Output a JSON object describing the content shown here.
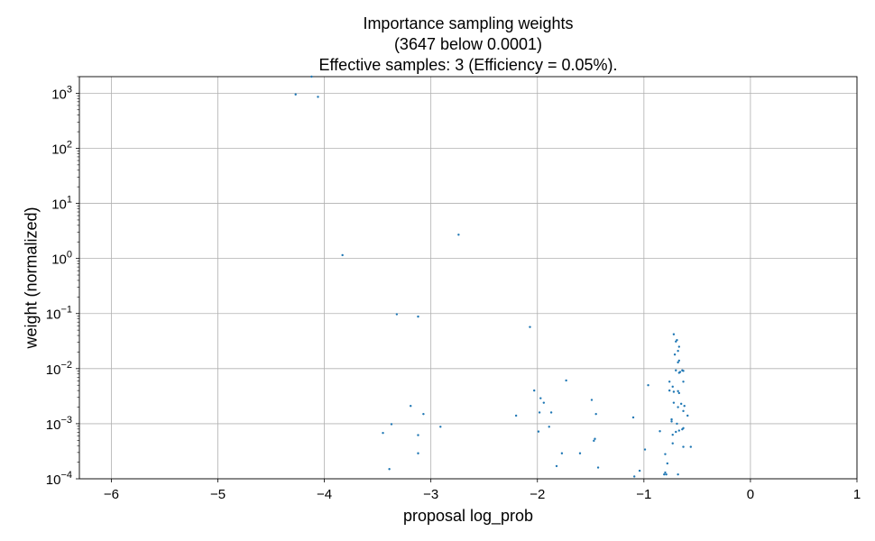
{
  "chart_data": {
    "type": "scatter",
    "title_lines": [
      "Importance sampling weights",
      "(3647 below 0.0001)",
      "Effective samples: 3 (Efficiency = 0.05%)."
    ],
    "xlabel": "proposal log_prob",
    "ylabel": "weight (normalized)",
    "xlim": [
      -6.3,
      1
    ],
    "ylim": [
      0.0001,
      2000
    ],
    "yscale": "log",
    "grid": true,
    "marker_color": "#1f77b4",
    "x_ticks": [
      {
        "v": -6,
        "label": "−6"
      },
      {
        "v": -5,
        "label": "−5"
      },
      {
        "v": -4,
        "label": "−4"
      },
      {
        "v": -3,
        "label": "−3"
      },
      {
        "v": -2,
        "label": "−2"
      },
      {
        "v": -1,
        "label": "−1"
      },
      {
        "v": 0,
        "label": "0"
      },
      {
        "v": 1,
        "label": "1"
      }
    ],
    "y_ticks": [
      {
        "exp": 3,
        "base": "10",
        "sup": "3"
      },
      {
        "exp": 2,
        "base": "10",
        "sup": "2"
      },
      {
        "exp": 1,
        "base": "10",
        "sup": "1"
      },
      {
        "exp": 0,
        "base": "10",
        "sup": "0"
      },
      {
        "exp": -1,
        "base": "10",
        "sup": "−1"
      },
      {
        "exp": -2,
        "base": "10",
        "sup": "−2"
      },
      {
        "exp": -3,
        "base": "10",
        "sup": "−3"
      },
      {
        "exp": -4,
        "base": "10",
        "sup": "−4"
      }
    ],
    "points": [
      [
        -4.27,
        950
      ],
      [
        -4.12,
        2000
      ],
      [
        -4.06,
        860
      ],
      [
        -3.83,
        1.15
      ],
      [
        -2.74,
        2.7
      ],
      [
        -3.32,
        0.097
      ],
      [
        -3.12,
        0.088
      ],
      [
        -2.07,
        0.057
      ],
      [
        -3.19,
        0.0021
      ],
      [
        -3.07,
        0.0015
      ],
      [
        -3.37,
        0.00098
      ],
      [
        -3.45,
        0.00068
      ],
      [
        -3.12,
        0.00062
      ],
      [
        -2.91,
        0.00088
      ],
      [
        -3.12,
        0.00029
      ],
      [
        -3.39,
        0.00015
      ],
      [
        -2.2,
        0.0014
      ],
      [
        -2.03,
        0.004
      ],
      [
        -1.97,
        0.0029
      ],
      [
        -1.94,
        0.0024
      ],
      [
        -1.98,
        0.0016
      ],
      [
        -1.87,
        0.0016
      ],
      [
        -1.89,
        0.00088
      ],
      [
        -1.99,
        0.00072
      ],
      [
        -1.73,
        0.0061
      ],
      [
        -1.77,
        0.00029
      ],
      [
        -1.82,
        0.00017
      ],
      [
        -1.6,
        0.00029
      ],
      [
        -1.49,
        0.0027
      ],
      [
        -1.45,
        0.0015
      ],
      [
        -1.46,
        0.00053
      ],
      [
        -1.47,
        0.00049
      ],
      [
        -1.43,
        0.00016
      ],
      [
        -1.1,
        0.0013
      ],
      [
        -1.09,
        0.00011
      ],
      [
        -1.04,
        0.00014
      ],
      [
        -0.96,
        0.005
      ],
      [
        -0.85,
        0.00073
      ],
      [
        -0.99,
        0.00034
      ],
      [
        -0.72,
        0.042
      ],
      [
        -0.69,
        0.033
      ],
      [
        -0.7,
        0.031
      ],
      [
        -0.67,
        0.025
      ],
      [
        -0.68,
        0.021
      ],
      [
        -0.71,
        0.018
      ],
      [
        -0.67,
        0.014
      ],
      [
        -0.68,
        0.013
      ],
      [
        -0.7,
        0.0093
      ],
      [
        -0.64,
        0.0093
      ],
      [
        -0.66,
        0.0087
      ],
      [
        -0.63,
        0.0091
      ],
      [
        -0.67,
        0.0084
      ],
      [
        -0.63,
        0.0058
      ],
      [
        -0.76,
        0.0058
      ],
      [
        -0.73,
        0.0047
      ],
      [
        -0.76,
        0.004
      ],
      [
        -0.72,
        0.0038
      ],
      [
        -0.68,
        0.0039
      ],
      [
        -0.67,
        0.0036
      ],
      [
        -0.72,
        0.0024
      ],
      [
        -0.65,
        0.0023
      ],
      [
        -0.62,
        0.0021
      ],
      [
        -0.68,
        0.002
      ],
      [
        -0.63,
        0.0017
      ],
      [
        -0.59,
        0.0014
      ],
      [
        -0.74,
        0.0012
      ],
      [
        -0.74,
        0.0011
      ],
      [
        -0.69,
        0.001
      ],
      [
        -0.63,
        0.00083
      ],
      [
        -0.64,
        0.00079
      ],
      [
        -0.67,
        0.00075
      ],
      [
        -0.7,
        0.00071
      ],
      [
        -0.73,
        0.00063
      ],
      [
        -0.73,
        0.00044
      ],
      [
        -0.63,
        0.00038
      ],
      [
        -0.56,
        0.00038
      ],
      [
        -0.8,
        0.00028
      ],
      [
        -0.78,
        0.00019
      ],
      [
        -0.8,
        0.00013
      ],
      [
        -0.79,
        0.00012
      ],
      [
        -0.81,
        0.00012
      ],
      [
        -0.68,
        0.00012
      ]
    ]
  }
}
